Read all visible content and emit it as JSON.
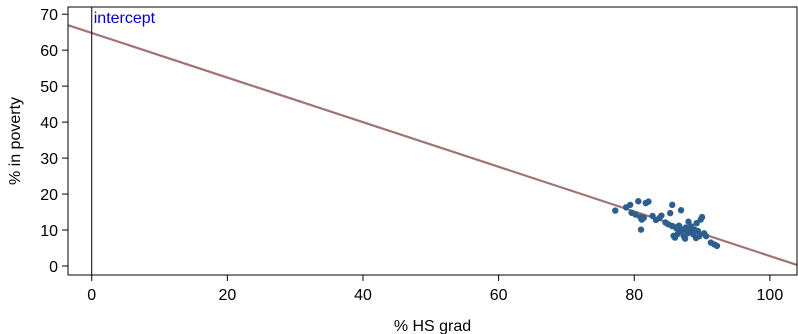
{
  "chart_data": {
    "type": "scatter",
    "xlabel": "% HS grad",
    "ylabel": "% in poverty",
    "xlim": [
      -3.5,
      104
    ],
    "ylim": [
      -2.5,
      72
    ],
    "xticks": [
      0,
      20,
      40,
      60,
      80,
      100
    ],
    "yticks": [
      0,
      10,
      20,
      30,
      40,
      50,
      60,
      70
    ],
    "grid": false,
    "colors": {
      "points": "#2c5f8e",
      "fit_line": "#a07474",
      "annotation": "#0000cc"
    },
    "points": [
      [
        77.2,
        15.4
      ],
      [
        78.8,
        16.3
      ],
      [
        79.4,
        17.0
      ],
      [
        79.6,
        14.8
      ],
      [
        80.2,
        14.3
      ],
      [
        80.6,
        18.0
      ],
      [
        80.9,
        13.6
      ],
      [
        81.1,
        12.9
      ],
      [
        81.0,
        10.1
      ],
      [
        81.4,
        13.4
      ],
      [
        81.7,
        17.5
      ],
      [
        82.1,
        17.9
      ],
      [
        82.7,
        13.9
      ],
      [
        83.2,
        12.8
      ],
      [
        83.7,
        13.3
      ],
      [
        84.0,
        14.0
      ],
      [
        84.6,
        12.1
      ],
      [
        85.0,
        11.6
      ],
      [
        85.3,
        14.7
      ],
      [
        85.6,
        17.0
      ],
      [
        85.6,
        11.1
      ],
      [
        85.8,
        8.4
      ],
      [
        86.0,
        7.9
      ],
      [
        86.2,
        10.5
      ],
      [
        86.4,
        8.9
      ],
      [
        86.6,
        11.2
      ],
      [
        86.7,
        9.6
      ],
      [
        86.9,
        15.5
      ],
      [
        87.2,
        10.0
      ],
      [
        87.3,
        8.3
      ],
      [
        87.5,
        7.6
      ],
      [
        87.6,
        10.7
      ],
      [
        87.9,
        9.1
      ],
      [
        88.0,
        12.3
      ],
      [
        88.2,
        10.3
      ],
      [
        88.4,
        11.0
      ],
      [
        88.5,
        9.4
      ],
      [
        88.7,
        8.8
      ],
      [
        88.9,
        10.1
      ],
      [
        89.1,
        7.8
      ],
      [
        89.2,
        11.9
      ],
      [
        89.4,
        9.7
      ],
      [
        89.6,
        8.3
      ],
      [
        89.8,
        12.9
      ],
      [
        90.0,
        13.6
      ],
      [
        90.3,
        9.1
      ],
      [
        90.6,
        8.3
      ],
      [
        91.3,
        6.5
      ],
      [
        91.8,
        6.0
      ],
      [
        92.2,
        5.6
      ]
    ],
    "fit_line": {
      "intercept": 64.78,
      "slope": -0.62
    },
    "intercept_x": 0,
    "annotation": "intercept"
  }
}
